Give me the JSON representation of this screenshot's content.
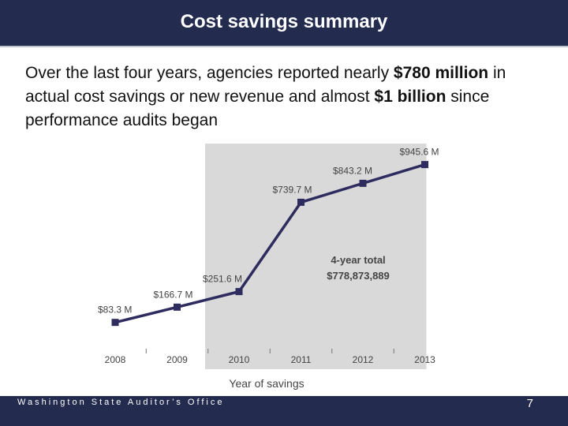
{
  "slide": {
    "title": "Cost savings summary",
    "intro": {
      "part1": "Over the last four years, agencies reported nearly ",
      "bold1": "$780 million",
      "part2": " in actual cost savings or new revenue and almost ",
      "bold2": "$1 billion",
      "part3": " since performance audits began"
    },
    "footer": "Washington State Auditor’s Office",
    "page_number": "7"
  },
  "chart_data": {
    "type": "line",
    "x": [
      "2008",
      "2009",
      "2010",
      "2011",
      "2012",
      "2013"
    ],
    "series": [
      {
        "values": [
          83.3,
          166.7,
          251.6,
          739.7,
          843.2,
          945.6
        ]
      }
    ],
    "data_labels": [
      "$83.3 M",
      "$166.7 M",
      "$251.6 M",
      "$739.7 M",
      "$843.2 M",
      "$945.6 M"
    ],
    "xlabel": "Year of savings",
    "ylabel": "",
    "ylim": [
      0,
      1000
    ],
    "highlight_range": [
      "2010",
      "2013"
    ],
    "annotation": {
      "line1": "4-year total",
      "line2": "$778,873,889"
    },
    "colors": {
      "line": "#2e2b5e",
      "highlight": "#d9d9d9",
      "text": "#444444"
    }
  }
}
